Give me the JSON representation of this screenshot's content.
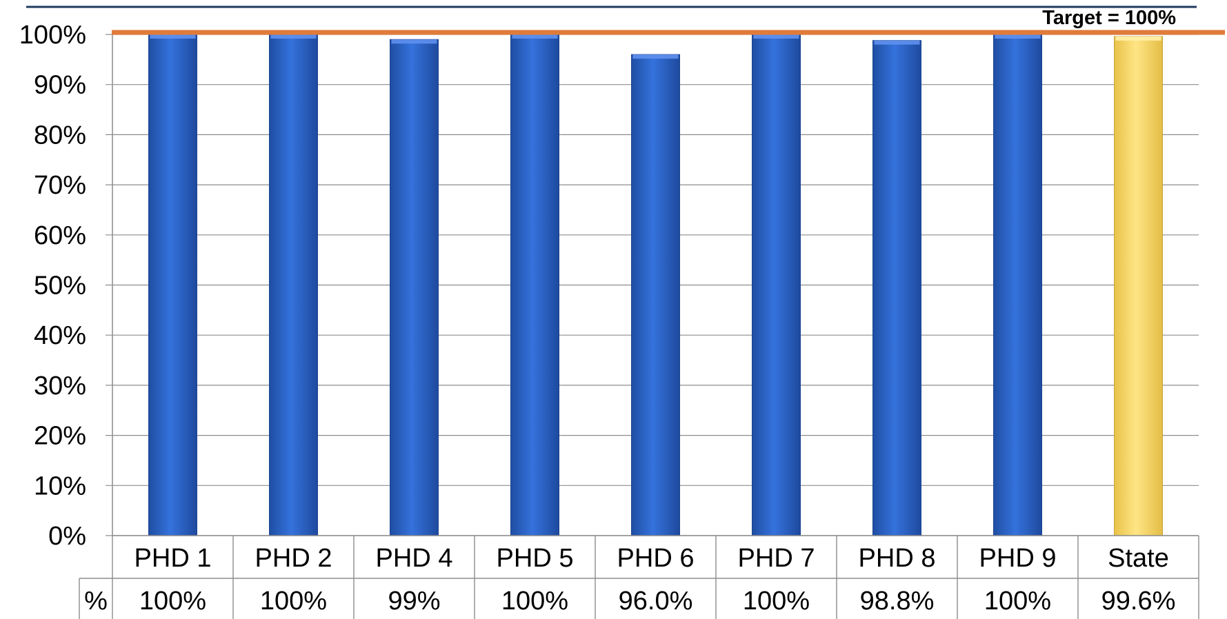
{
  "chart_data": {
    "type": "bar",
    "title": "",
    "xlabel": "",
    "ylabel": "",
    "ylim": [
      0,
      100
    ],
    "yticks": [
      0,
      10,
      20,
      30,
      40,
      50,
      60,
      70,
      80,
      90,
      100
    ],
    "ytick_suffix": "%",
    "grid": true,
    "categories": [
      "PHD 1",
      "PHD 2",
      "PHD 4",
      "PHD 5",
      "PHD 6",
      "PHD 7",
      "PHD 8",
      "PHD 9",
      "State"
    ],
    "values": [
      100,
      100,
      99,
      100,
      96.0,
      100,
      98.8,
      100,
      99.6
    ],
    "table_header": "%",
    "value_labels": [
      "100%",
      "100%",
      "99%",
      "100%",
      "96.0%",
      "100%",
      "98.8%",
      "100%",
      "99.6%"
    ],
    "target": {
      "value": 100,
      "label": "Target = 100%"
    },
    "colors": {
      "bar": "#2e62c8",
      "bar_highlight": "#fddc6c",
      "target_line": "#e07b3a",
      "top_rule": "#1f3a5f",
      "grid": "#8c8c8c"
    },
    "highlight_category": "State"
  }
}
